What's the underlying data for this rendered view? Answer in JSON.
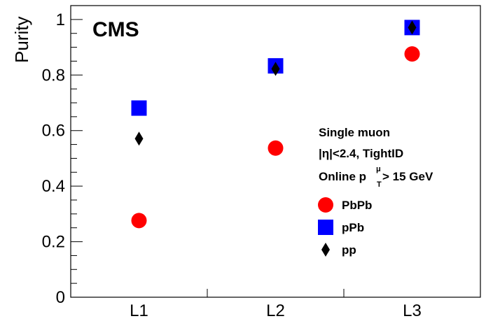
{
  "chart_data": {
    "type": "scatter",
    "categories": [
      "L1",
      "L2",
      "L3"
    ],
    "xlabel": "",
    "ylabel": "Purity",
    "ylim": [
      0,
      1.05
    ],
    "yticks": [
      0,
      0.2,
      0.4,
      0.6,
      0.8,
      1
    ],
    "ytick_labels": [
      "0",
      "0.2",
      "0.4",
      "0.6",
      "0.8",
      "1"
    ],
    "series": [
      {
        "name": "PbPb",
        "marker": "circle",
        "color": "#ff0000",
        "values": [
          0.276,
          0.537,
          0.876
        ]
      },
      {
        "name": "pPb",
        "marker": "square",
        "color": "#0000ff",
        "values": [
          0.681,
          0.833,
          0.971
        ]
      },
      {
        "name": "pp",
        "marker": "diamond",
        "color": "#000000",
        "values": [
          0.571,
          0.822,
          0.971
        ]
      }
    ],
    "legend_position": "right",
    "grid": false
  },
  "annotations": {
    "experiment": "CMS",
    "legend_header_line1": "Single muon",
    "legend_header_line2": "|η|<2.4, TightID",
    "legend_header_line3_prefix": "Online p",
    "legend_header_line3_sup": "μ",
    "legend_header_line3_sub": "T",
    "legend_header_line3_suffix": " > 15 GeV"
  }
}
